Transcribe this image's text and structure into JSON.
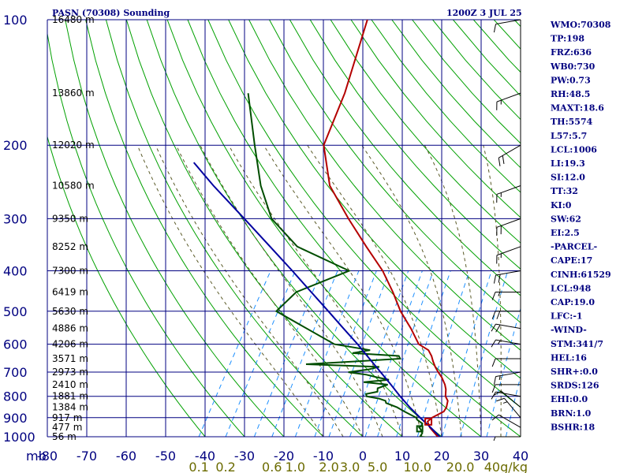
{
  "header": {
    "station_title": "PASN (70308) Sounding",
    "datetime": "1200Z  3 JUL 25"
  },
  "stats": [
    "WMO:70308",
    "TP:198",
    "FRZ:636",
    "WB0:730",
    "PW:0.73",
    "RH:48.5",
    "MAXT:18.6",
    "TH:5574",
    "L57:5.7",
    "LCL:1006",
    "LI:19.3",
    "SI:12.0",
    "TT:32",
    "KI:0",
    "SW:62",
    "EI:2.5",
    "-PARCEL-",
    "CAPE:17",
    "CINH:61529",
    "LCL:948",
    "CAP:19.0",
    "LFC:-1",
    "-WIND-",
    "STM:341/7",
    "HEL:16",
    "SHR+:0.0",
    "SRDS:126",
    "EHI:0.0",
    "BRN:1.0",
    "BSHR:18"
  ],
  "colors": {
    "isobar": "#000080",
    "isotherm": "#000080",
    "dry_adiabat": "#00a000",
    "moist_adiabat": "#5a5a28",
    "mixing_ratio": "#1e90ff",
    "temperature": "#b40000",
    "dewpoint": "#004d00",
    "parcel": "#0000a0",
    "wind": "#000000"
  },
  "chart_data": {
    "type": "line",
    "title": "PASN (70308) Sounding",
    "xlabel": "",
    "ylabel": "mb",
    "xlim": [
      -80,
      40
    ],
    "ylim": [
      1000,
      100
    ],
    "grid": true,
    "pressure_ticks": [
      "100",
      "200",
      "300",
      "400",
      "500",
      "600",
      "700",
      "800",
      "900",
      "1000"
    ],
    "pressure_values": [
      100,
      200,
      300,
      400,
      500,
      600,
      700,
      800,
      900,
      1000
    ],
    "temperature_ticks": [
      "-80",
      "-70",
      "-60",
      "-50",
      "-40",
      "-30",
      "-20",
      "-10",
      "0",
      "10",
      "20",
      "30",
      "40"
    ],
    "mixing_ratio_ticks": [
      "0.1",
      "0.2",
      "0.6",
      "1.0",
      "2.0",
      "3.0",
      "5.0",
      "10.0",
      "20.0",
      "40g/kg"
    ],
    "height_labels": [
      {
        "p": 100,
        "label": "16480 m"
      },
      {
        "p": 150,
        "label": "13860 m"
      },
      {
        "p": 200,
        "label": "12020 m"
      },
      {
        "p": 250,
        "label": "10580 m"
      },
      {
        "p": 300,
        "label": "9350 m"
      },
      {
        "p": 350,
        "label": "8252 m"
      },
      {
        "p": 400,
        "label": "7300 m"
      },
      {
        "p": 450,
        "label": "6419 m"
      },
      {
        "p": 500,
        "label": "5630 m"
      },
      {
        "p": 550,
        "label": "4886 m"
      },
      {
        "p": 600,
        "label": "4206 m"
      },
      {
        "p": 650,
        "label": "3571 m"
      },
      {
        "p": 700,
        "label": "2973 m"
      },
      {
        "p": 750,
        "label": "2410 m"
      },
      {
        "p": 800,
        "label": "1881 m"
      },
      {
        "p": 850,
        "label": "1384 m"
      },
      {
        "p": 900,
        "label": "917 m"
      },
      {
        "p": 950,
        "label": "477 m"
      },
      {
        "p": 1000,
        "label": "56 m"
      }
    ],
    "series": [
      {
        "key": "temperature",
        "points": [
          [
            1006,
            20
          ],
          [
            1000,
            19
          ],
          [
            950,
            15.5
          ],
          [
            920,
            14.0
          ],
          [
            900,
            14.5
          ],
          [
            870,
            16.5
          ],
          [
            850,
            16.5
          ],
          [
            820,
            15.8
          ],
          [
            800,
            14.5
          ],
          [
            770,
            13.5
          ],
          [
            750,
            12.5
          ],
          [
            720,
            10.5
          ],
          [
            700,
            8.8
          ],
          [
            680,
            7.2
          ],
          [
            660,
            5.8
          ],
          [
            640,
            4.5
          ],
          [
            620,
            2.8
          ],
          [
            600,
            -0.6
          ],
          [
            550,
            -5.1
          ],
          [
            500,
            -10.5
          ],
          [
            450,
            -15.5
          ],
          [
            400,
            -21.5
          ],
          [
            350,
            -29.5
          ],
          [
            300,
            -38.5
          ],
          [
            250,
            -48.5
          ],
          [
            200,
            -56.5
          ],
          [
            150,
            -59.5
          ],
          [
            100,
            -65.5
          ]
        ]
      },
      {
        "key": "dewpoint",
        "points": [
          [
            1006,
            18.5
          ],
          [
            1000,
            14.5
          ],
          [
            980,
            14.5
          ],
          [
            960,
            13.5
          ],
          [
            950,
            12.8
          ],
          [
            940,
            13.2
          ],
          [
            930,
            13.0
          ],
          [
            920,
            12.0
          ],
          [
            910,
            11.0
          ],
          [
            900,
            10.5
          ],
          [
            870,
            6.5
          ],
          [
            850,
            4.0
          ],
          [
            830,
            0.5
          ],
          [
            820,
            0.0
          ],
          [
            810,
            -2.0
          ],
          [
            800,
            -5.5
          ],
          [
            790,
            -6.0
          ],
          [
            780,
            -3.5
          ],
          [
            765,
            -4.0
          ],
          [
            750,
            -2.0
          ],
          [
            740,
            -8.5
          ],
          [
            730,
            -2.5
          ],
          [
            720,
            -6.0
          ],
          [
            710,
            -9.0
          ],
          [
            700,
            -14.0
          ],
          [
            690,
            -9.5
          ],
          [
            680,
            -7.0
          ],
          [
            670,
            -26.0
          ],
          [
            660,
            -14.0
          ],
          [
            650,
            -3.0
          ],
          [
            640,
            -3.8
          ],
          [
            630,
            -16.0
          ],
          [
            620,
            -12.0
          ],
          [
            600,
            -22.0
          ],
          [
            500,
            -42.0
          ],
          [
            450,
            -40.0
          ],
          [
            400,
            -30.0
          ],
          [
            350,
            -47.0
          ],
          [
            300,
            -58.0
          ],
          [
            250,
            -66.0
          ],
          [
            200,
            -74.0
          ],
          [
            150,
            -84.0
          ]
        ]
      },
      {
        "key": "parcel",
        "points": [
          [
            1006,
            20
          ],
          [
            950,
            15.7
          ],
          [
            900,
            11.5
          ],
          [
            850,
            7.2
          ],
          [
            800,
            3.0
          ],
          [
            750,
            -1.2
          ],
          [
            700,
            -5.8
          ],
          [
            650,
            -10.8
          ],
          [
            600,
            -16.1
          ],
          [
            550,
            -22.2
          ],
          [
            500,
            -28.8
          ],
          [
            450,
            -36.2
          ],
          [
            400,
            -44.4
          ],
          [
            350,
            -53.9
          ],
          [
            300,
            -64.9
          ],
          [
            250,
            -78.0
          ],
          [
            220,
            -86.7
          ]
        ]
      }
    ],
    "winds": [
      {
        "p": 1000,
        "dir": 270,
        "spd": 5
      },
      {
        "p": 950,
        "dir": 300,
        "spd": 10
      },
      {
        "p": 900,
        "dir": 320,
        "spd": 15
      },
      {
        "p": 850,
        "dir": 310,
        "spd": 10
      },
      {
        "p": 800,
        "dir": 280,
        "spd": 10
      },
      {
        "p": 750,
        "dir": 270,
        "spd": 10
      },
      {
        "p": 700,
        "dir": 260,
        "spd": 15
      },
      {
        "p": 650,
        "dir": 270,
        "spd": 10
      },
      {
        "p": 600,
        "dir": 280,
        "spd": 15
      },
      {
        "p": 550,
        "dir": 280,
        "spd": 20
      },
      {
        "p": 500,
        "dir": 270,
        "spd": 20
      },
      {
        "p": 450,
        "dir": 270,
        "spd": 15
      },
      {
        "p": 400,
        "dir": 260,
        "spd": 20
      },
      {
        "p": 350,
        "dir": 250,
        "spd": 15
      },
      {
        "p": 300,
        "dir": 250,
        "spd": 20
      },
      {
        "p": 250,
        "dir": 250,
        "spd": 15
      },
      {
        "p": 200,
        "dir": 240,
        "spd": 20
      },
      {
        "p": 150,
        "dir": 250,
        "spd": 15
      },
      {
        "p": 100,
        "dir": 260,
        "spd": 10
      }
    ]
  }
}
